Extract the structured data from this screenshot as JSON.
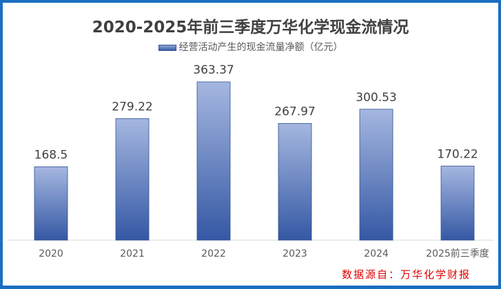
{
  "chart_data": {
    "type": "bar",
    "title": "2020-2025年前三季度万华化学现金流情况",
    "legend": "经营活动产生的现金流量净额（亿元）",
    "categories": [
      "2020",
      "2021",
      "2022",
      "2023",
      "2024",
      "2025前三季度"
    ],
    "values": [
      168.5,
      279.22,
      363.37,
      267.97,
      300.53,
      170.22
    ],
    "value_labels": [
      "168.5",
      "279.22",
      "363.37",
      "267.97",
      "300.53",
      "170.22"
    ],
    "ylim": [
      0,
      400
    ],
    "grid": false,
    "legend_position": "top"
  },
  "source": "数据源自：万华化学财报",
  "colors": {
    "bar_top": "#a5b7e0",
    "bar_bottom": "#3558a4",
    "border": "#1a6fc0",
    "source": "#e00000"
  }
}
